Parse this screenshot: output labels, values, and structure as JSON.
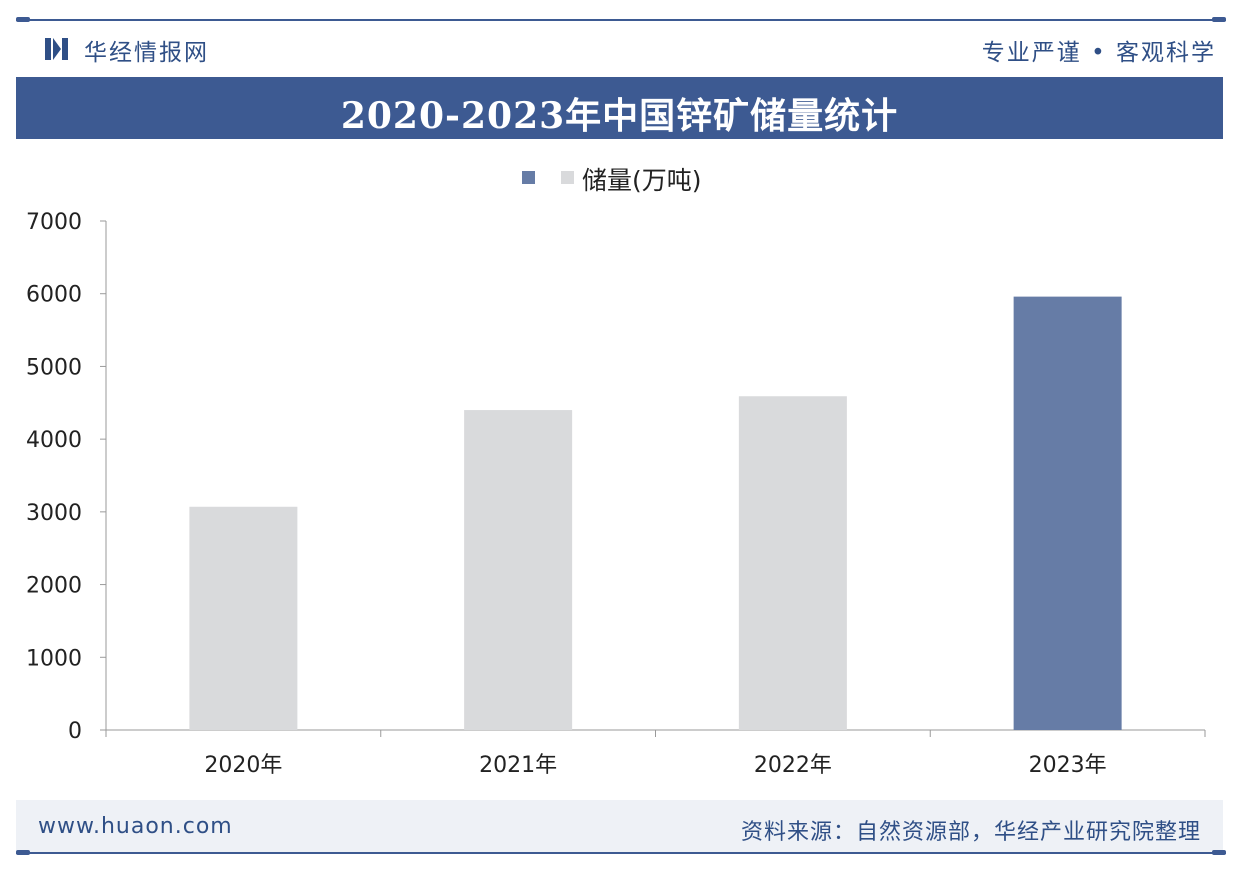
{
  "header": {
    "brand": "华经情报网",
    "slogan": "专业严谨 • 客观科学",
    "logo_icon": "huajing-logo-icon"
  },
  "title": "2020-2023年中国锌矿储量统计",
  "footer": {
    "website": "www.huaon.com",
    "source": "资料来源：自然资源部，华经产业研究院整理"
  },
  "colors": {
    "brand_blue": "#3d5a92",
    "bar_gray": "#d9dadc",
    "bar_highlight": "#667ca6"
  },
  "chart_data": {
    "type": "bar",
    "categories": [
      "2020年",
      "2021年",
      "2022年",
      "2023年"
    ],
    "series": [
      {
        "name": "储量(万吨)",
        "values": [
          3070,
          4400,
          4590,
          5960
        ]
      }
    ],
    "highlight_index": 3,
    "ylim": [
      0,
      7000
    ],
    "yticks": [
      0,
      1000,
      2000,
      3000,
      4000,
      5000,
      6000,
      7000
    ],
    "xlabel": "",
    "ylabel": "",
    "grid": false,
    "legend_position": "top-center"
  }
}
